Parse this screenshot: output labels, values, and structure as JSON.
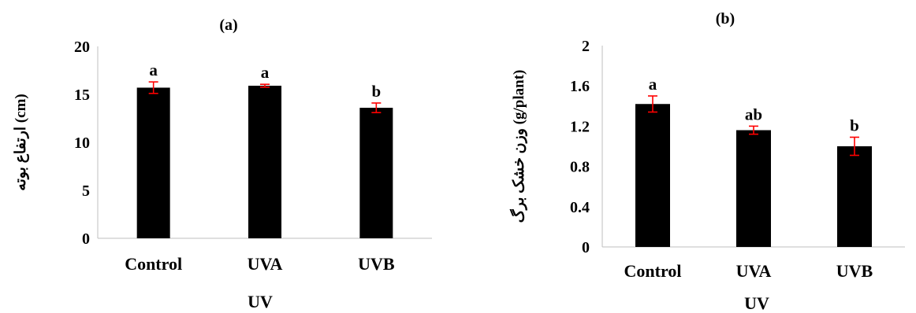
{
  "colors": {
    "bar": "#000000",
    "error_bar": "#ff0000",
    "axis": "#bfbfbf",
    "text": "#000000"
  },
  "chart_data": [
    {
      "type": "bar",
      "title": "(a)",
      "xlabel": "UV",
      "ylabel": "ارتفاع بوته (cm)",
      "categories": [
        "Control",
        "UVA",
        "UVB"
      ],
      "values": [
        15.7,
        15.9,
        13.6
      ],
      "errors": [
        0.6,
        0.15,
        0.5
      ],
      "letters": [
        "a",
        "a",
        "b"
      ],
      "ylim": [
        0,
        20
      ],
      "yticks": [
        0,
        5,
        10,
        15,
        20
      ],
      "ytick_labels": [
        "0",
        "5",
        "10",
        "15",
        "20"
      ],
      "grid": false,
      "legend": "none"
    },
    {
      "type": "bar",
      "title": "(b)",
      "xlabel": "UV",
      "ylabel": "وزن خشک برگ (g/plant)",
      "categories": [
        "Control",
        "UVA",
        "UVB"
      ],
      "values": [
        1.42,
        1.16,
        1.0
      ],
      "errors": [
        0.08,
        0.04,
        0.09
      ],
      "letters": [
        "a",
        "ab",
        "b"
      ],
      "ylim": [
        0,
        2
      ],
      "yticks": [
        0,
        0.4,
        0.8,
        1.2,
        1.6,
        2
      ],
      "ytick_labels": [
        "0",
        "0.4",
        "0.8",
        "1.2",
        "1.6",
        "2"
      ],
      "grid": false,
      "legend": "none"
    }
  ]
}
